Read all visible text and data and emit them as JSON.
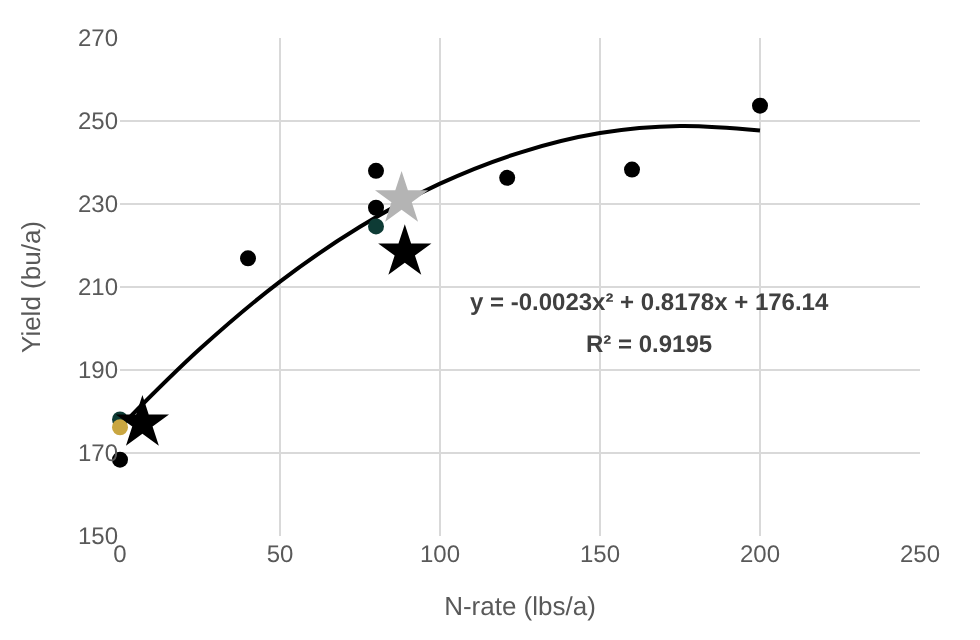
{
  "chart_data": {
    "type": "scatter",
    "xlabel": "N-rate (lbs/a)",
    "ylabel": "Yield (bu/a)",
    "xlim": [
      0,
      250
    ],
    "xticks": [
      0,
      50,
      100,
      150,
      200,
      250
    ],
    "ylim": [
      150,
      270
    ],
    "yticks": [
      150,
      170,
      190,
      210,
      230,
      250,
      270
    ],
    "grid": true,
    "series": [
      {
        "type": "line",
        "color": "#000000",
        "marker": "none",
        "line_style": "solid",
        "x": [
          2,
          25,
          50,
          75,
          100,
          125,
          150,
          175,
          200
        ],
        "values": [
          177.8,
          195.1,
          211.3,
          224.5,
          234.9,
          242.4,
          247.1,
          248.8,
          247.7
        ]
      },
      {
        "color": "#000000",
        "marker": "circle",
        "x": [
          0,
          40,
          80,
          80,
          121,
          160,
          200
        ],
        "values": [
          168.4,
          216.9,
          238.0,
          229.1,
          236.3,
          238.3,
          253.7
        ]
      },
      {
        "color": "#0e3b35",
        "marker": "circle",
        "x": [
          0,
          80
        ],
        "values": [
          178.1,
          224.6
        ]
      },
      {
        "color": "#c9a640",
        "marker": "circle",
        "x": [
          0
        ],
        "values": [
          176.2
        ]
      },
      {
        "color": "#b4b4b4",
        "marker": "star",
        "x": [
          88
        ],
        "values": [
          231.2
        ]
      },
      {
        "color": "#000000",
        "marker": "star",
        "x": [
          7,
          89
        ],
        "values": [
          177.2,
          218.4
        ]
      }
    ],
    "annotations": [
      "y = -0.0023x² + 0.8178x + 176.14",
      "R² = 0.9195"
    ]
  }
}
